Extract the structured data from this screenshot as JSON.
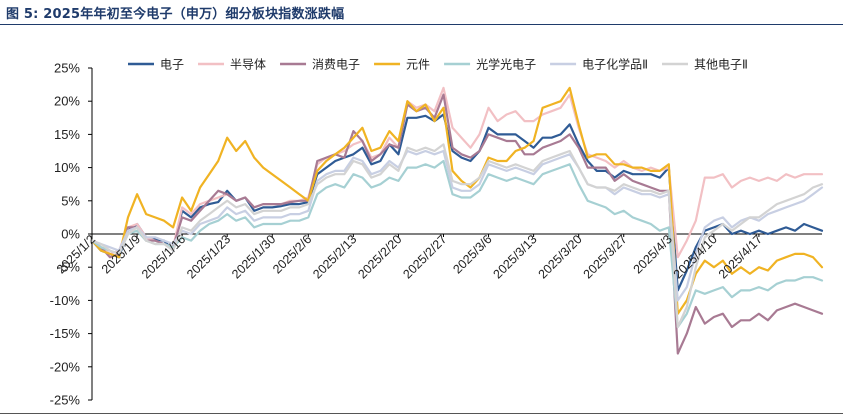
{
  "figure": {
    "title": "图 5: 2025年年初至今电子（申万）细分板块指数涨跌幅"
  },
  "chart_data": {
    "type": "line",
    "ylim": [
      -25,
      25
    ],
    "yticks": [
      -25,
      -20,
      -15,
      -10,
      -5,
      0,
      5,
      10,
      15,
      20,
      25
    ],
    "ytick_suffix": "%",
    "legend_position": "top",
    "x_tick_labels": [
      "2025/1/2",
      "2025/1/9",
      "2025/1/16",
      "2025/1/23",
      "2025/1/30",
      "2025/2/6",
      "2025/2/13",
      "2025/2/20",
      "2025/2/27",
      "2025/3/6",
      "2025/3/13",
      "2025/3/20",
      "2025/3/27",
      "2025/4/3",
      "2025/4/10",
      "2025/4/17"
    ],
    "x_tick_index": [
      0,
      5,
      10,
      15,
      20,
      24,
      29,
      34,
      39,
      44,
      49,
      54,
      59,
      64,
      69,
      74
    ],
    "x": [
      "2025/1/2",
      "2025/1/3",
      "2025/1/6",
      "2025/1/7",
      "2025/1/8",
      "2025/1/9",
      "2025/1/10",
      "2025/1/13",
      "2025/1/14",
      "2025/1/15",
      "2025/1/16",
      "2025/1/17",
      "2025/1/20",
      "2025/1/21",
      "2025/1/22",
      "2025/1/23",
      "2025/1/24",
      "2025/1/27",
      "2025/1/28",
      "2025/1/29",
      "2025/1/30",
      "2025/2/3",
      "2025/2/4",
      "2025/2/5",
      "2025/2/6",
      "2025/2/7",
      "2025/2/10",
      "2025/2/11",
      "2025/2/12",
      "2025/2/13",
      "2025/2/14",
      "2025/2/17",
      "2025/2/18",
      "2025/2/19",
      "2025/2/20",
      "2025/2/21",
      "2025/2/24",
      "2025/2/25",
      "2025/2/26",
      "2025/2/27",
      "2025/2/28",
      "2025/3/3",
      "2025/3/4",
      "2025/3/5",
      "2025/3/6",
      "2025/3/7",
      "2025/3/10",
      "2025/3/11",
      "2025/3/12",
      "2025/3/13",
      "2025/3/14",
      "2025/3/17",
      "2025/3/18",
      "2025/3/19",
      "2025/3/20",
      "2025/3/21",
      "2025/3/24",
      "2025/3/25",
      "2025/3/26",
      "2025/3/27",
      "2025/3/28",
      "2025/3/31",
      "2025/4/1",
      "2025/4/2",
      "2025/4/3",
      "2025/4/7",
      "2025/4/8",
      "2025/4/9",
      "2025/4/10",
      "2025/4/11",
      "2025/4/14",
      "2025/4/15",
      "2025/4/16",
      "2025/4/17",
      "2025/4/18",
      "2025/4/21",
      "2025/4/22",
      "2025/4/23",
      "2025/4/24",
      "2025/4/25",
      "2025/4/28",
      "2025/4/29"
    ],
    "series": [
      {
        "name": "电子",
        "color": "#2f5b95",
        "width": 2.2,
        "values": [
          -1.0,
          -2.5,
          -3.0,
          -3.5,
          0.5,
          1.5,
          -0.5,
          -0.8,
          -1.0,
          -2.5,
          3.5,
          2.5,
          4.0,
          4.5,
          4.8,
          6.5,
          5.0,
          5.5,
          3.5,
          4.0,
          4.0,
          4.2,
          4.5,
          4.5,
          4.8,
          9.0,
          10.0,
          11.0,
          11.5,
          12.0,
          13.0,
          10.5,
          11.0,
          13.5,
          12.0,
          17.5,
          17.5,
          17.8,
          17.0,
          18.0,
          12.5,
          11.5,
          11.0,
          12.5,
          16.0,
          15.0,
          15.0,
          15.0,
          14.0,
          13.0,
          14.5,
          14.5,
          15.0,
          16.5,
          13.5,
          11.0,
          9.5,
          9.5,
          8.5,
          9.5,
          9.0,
          9.0,
          9.0,
          8.5,
          10.0,
          -8.5,
          -5.5,
          -2.0,
          0.5,
          1.0,
          1.5,
          0.0,
          0.5,
          0.0,
          0.5,
          0.0,
          0.5,
          1.0,
          0.5,
          1.5,
          1.0,
          0.5
        ]
      },
      {
        "name": "半导体",
        "color": "#f2c0c4",
        "width": 2.2,
        "values": [
          -1.0,
          -2.0,
          -3.0,
          -2.5,
          1.0,
          1.5,
          -0.5,
          -1.0,
          -1.5,
          -2.0,
          4.0,
          3.0,
          4.5,
          5.0,
          5.5,
          6.0,
          5.0,
          5.5,
          4.0,
          4.5,
          4.5,
          4.5,
          5.0,
          5.0,
          5.5,
          10.5,
          11.5,
          12.0,
          12.5,
          13.5,
          14.0,
          11.5,
          12.0,
          14.5,
          13.0,
          20.0,
          19.0,
          19.5,
          18.5,
          22.0,
          16.0,
          14.5,
          13.0,
          15.0,
          19.0,
          17.0,
          18.0,
          18.5,
          17.0,
          17.0,
          18.0,
          18.5,
          19.0,
          21.0,
          16.0,
          12.0,
          11.5,
          11.0,
          10.0,
          11.0,
          10.0,
          9.5,
          10.0,
          9.5,
          10.0,
          -3.5,
          -1.0,
          2.0,
          8.5,
          8.5,
          9.0,
          7.0,
          8.0,
          8.5,
          8.0,
          8.5,
          8.0,
          9.0,
          8.5,
          9.0,
          9.0,
          9.0
        ]
      },
      {
        "name": "消费电子",
        "color": "#a87a93",
        "width": 2.2,
        "values": [
          -1.0,
          -2.0,
          -3.5,
          -3.0,
          1.0,
          1.0,
          -1.0,
          -1.0,
          -1.5,
          -2.0,
          2.5,
          2.0,
          3.5,
          5.0,
          6.5,
          6.0,
          5.0,
          5.5,
          4.0,
          4.5,
          4.5,
          4.5,
          4.8,
          5.0,
          5.0,
          11.0,
          11.5,
          12.0,
          11.5,
          15.5,
          14.0,
          11.0,
          12.0,
          13.5,
          13.0,
          19.5,
          18.5,
          19.0,
          17.5,
          21.0,
          13.0,
          12.0,
          11.5,
          12.5,
          15.0,
          14.5,
          14.0,
          14.0,
          12.0,
          12.0,
          13.0,
          13.5,
          14.0,
          15.0,
          13.0,
          10.0,
          10.0,
          10.0,
          8.0,
          9.0,
          8.0,
          7.5,
          7.0,
          6.5,
          6.5,
          -18.0,
          -15.0,
          -11.0,
          -13.5,
          -12.5,
          -12.0,
          -14.0,
          -13.0,
          -13.0,
          -12.0,
          -13.0,
          -11.5,
          -11.0,
          -10.5,
          -11.0,
          -11.5,
          -12.0
        ]
      },
      {
        "name": "元件",
        "color": "#f0b323",
        "width": 2.2,
        "values": [
          -1.0,
          -2.5,
          -3.0,
          -3.5,
          2.5,
          6.0,
          3.0,
          2.5,
          2.0,
          1.0,
          5.5,
          3.5,
          7.0,
          9.0,
          11.0,
          14.5,
          12.5,
          14.0,
          11.5,
          10.0,
          9.0,
          8.0,
          7.0,
          6.0,
          5.0,
          9.5,
          11.0,
          12.0,
          13.0,
          14.5,
          16.0,
          12.5,
          13.0,
          15.5,
          14.0,
          20.0,
          18.5,
          19.5,
          17.0,
          19.0,
          9.5,
          8.0,
          7.0,
          8.5,
          11.5,
          11.0,
          11.0,
          12.5,
          13.0,
          14.0,
          19.0,
          19.5,
          20.0,
          22.0,
          16.5,
          11.5,
          12.0,
          12.0,
          10.5,
          10.5,
          10.0,
          10.0,
          9.5,
          9.5,
          10.5,
          -12.0,
          -10.0,
          -6.0,
          -4.0,
          -5.0,
          -4.0,
          -6.0,
          -5.0,
          -6.0,
          -5.0,
          -5.5,
          -4.0,
          -3.5,
          -3.0,
          -3.0,
          -3.5,
          -5.0
        ]
      },
      {
        "name": "光学光电子",
        "color": "#a6d0d3",
        "width": 2.2,
        "values": [
          -1.0,
          -2.0,
          -2.5,
          -3.0,
          0.0,
          0.5,
          -1.0,
          -1.5,
          -1.5,
          -2.0,
          -0.5,
          -1.0,
          0.5,
          1.5,
          2.0,
          3.0,
          2.0,
          2.5,
          1.0,
          1.5,
          1.5,
          1.5,
          2.0,
          2.0,
          2.5,
          6.0,
          7.0,
          7.5,
          7.0,
          9.0,
          8.5,
          7.0,
          7.5,
          8.5,
          8.0,
          10.0,
          10.0,
          10.5,
          10.0,
          11.0,
          6.0,
          5.5,
          5.5,
          6.5,
          9.0,
          8.5,
          8.0,
          8.5,
          8.0,
          7.5,
          9.0,
          9.5,
          10.0,
          10.5,
          7.5,
          5.0,
          4.5,
          4.0,
          3.0,
          3.5,
          2.5,
          2.0,
          1.5,
          0.5,
          1.0,
          -14.0,
          -12.0,
          -8.5,
          -9.0,
          -8.5,
          -8.0,
          -9.5,
          -8.5,
          -8.5,
          -8.0,
          -8.5,
          -7.5,
          -7.0,
          -7.0,
          -6.5,
          -6.5,
          -7.0
        ]
      },
      {
        "name": "电子化学品Ⅱ",
        "color": "#c8cfe3",
        "width": 2.2,
        "values": [
          -1.0,
          -1.5,
          -2.0,
          -2.5,
          0.5,
          1.0,
          -0.5,
          -0.5,
          -1.0,
          -1.5,
          0.5,
          0.0,
          1.5,
          2.0,
          2.5,
          4.0,
          3.0,
          3.5,
          2.0,
          2.5,
          2.5,
          2.5,
          3.0,
          3.0,
          3.5,
          8.0,
          9.0,
          9.5,
          9.5,
          11.5,
          11.0,
          9.0,
          9.5,
          11.0,
          10.0,
          12.5,
          12.0,
          12.5,
          12.0,
          12.5,
          7.0,
          6.5,
          6.5,
          7.5,
          10.5,
          10.0,
          9.5,
          10.0,
          9.5,
          9.0,
          10.5,
          11.0,
          11.5,
          12.0,
          10.0,
          7.5,
          7.0,
          7.0,
          6.0,
          7.0,
          6.5,
          6.0,
          6.0,
          5.5,
          6.0,
          -10.0,
          -8.0,
          -3.0,
          1.0,
          2.0,
          2.5,
          1.0,
          2.0,
          2.5,
          2.0,
          3.0,
          3.5,
          4.0,
          4.5,
          5.0,
          6.0,
          7.0
        ]
      },
      {
        "name": "其他电子Ⅱ",
        "color": "#d3d3d3",
        "width": 2.2,
        "values": [
          -1.0,
          -1.5,
          -2.5,
          -3.0,
          0.0,
          1.0,
          -1.0,
          -1.5,
          -1.5,
          -2.5,
          1.0,
          0.5,
          2.0,
          3.0,
          4.0,
          5.0,
          4.0,
          4.5,
          3.0,
          3.5,
          3.5,
          3.5,
          4.0,
          4.0,
          4.5,
          7.5,
          8.5,
          9.0,
          9.0,
          11.0,
          10.5,
          8.5,
          9.0,
          10.5,
          9.5,
          13.0,
          12.5,
          13.0,
          12.5,
          13.5,
          8.0,
          7.5,
          7.5,
          8.5,
          11.0,
          10.5,
          10.0,
          10.5,
          10.0,
          9.5,
          11.0,
          11.5,
          12.0,
          12.5,
          10.0,
          7.5,
          7.0,
          7.0,
          6.5,
          7.5,
          7.0,
          6.5,
          6.5,
          6.0,
          6.5,
          -14.0,
          -11.0,
          -5.0,
          -0.5,
          0.5,
          1.5,
          0.5,
          1.5,
          2.5,
          2.5,
          3.5,
          4.5,
          5.0,
          5.5,
          6.0,
          7.0,
          7.5
        ]
      }
    ]
  }
}
